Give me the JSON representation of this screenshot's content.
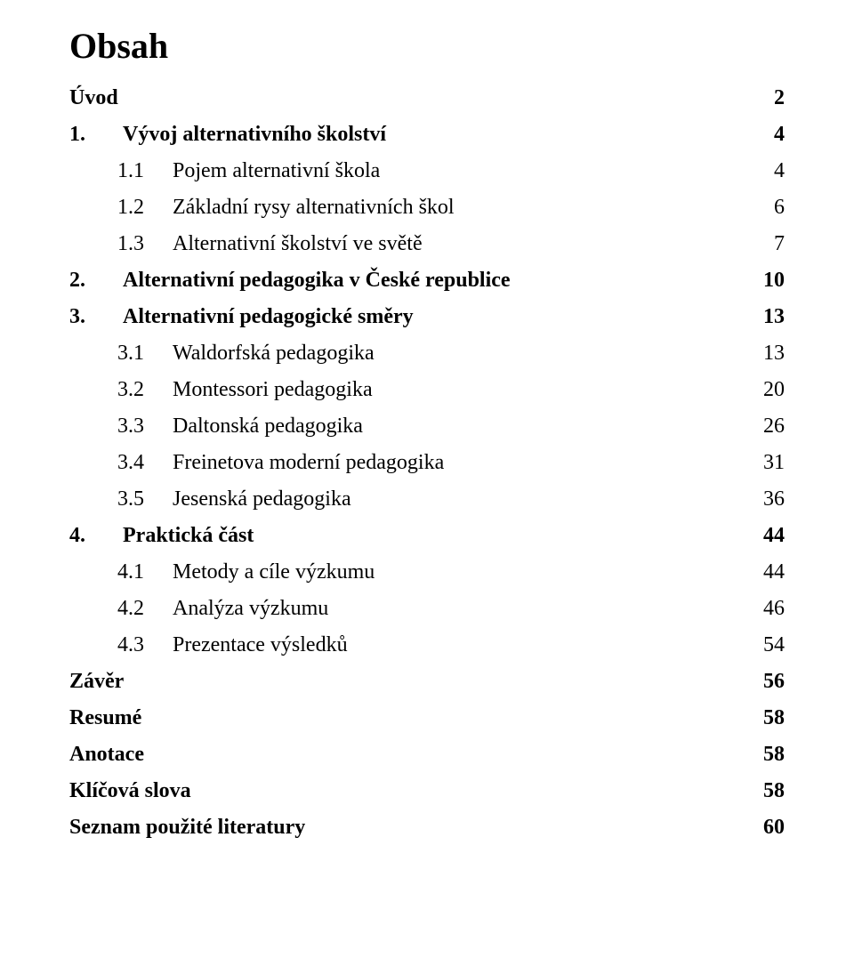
{
  "title": "Obsah",
  "colors": {
    "text": "#000000",
    "background": "#ffffff"
  },
  "typography": {
    "font_family": "Times New Roman",
    "title_fontsize_pt": 30,
    "body_fontsize_pt": 18
  },
  "toc": {
    "items": [
      {
        "level": "plain",
        "num": "",
        "text": "Úvod",
        "page": "2"
      },
      {
        "level": "level1",
        "num": "1.",
        "text": "Vývoj alternativního školství",
        "page": "4"
      },
      {
        "level": "level2",
        "num": "1.1",
        "text": "Pojem alternativní škola",
        "page": "4"
      },
      {
        "level": "level2",
        "num": "1.2",
        "text": "Základní rysy alternativních škol",
        "page": "6"
      },
      {
        "level": "level2",
        "num": "1.3",
        "text": "Alternativní školství ve světě",
        "page": "7"
      },
      {
        "level": "level1",
        "num": "2.",
        "text": "Alternativní pedagogika v České republice",
        "page": "10"
      },
      {
        "level": "level1",
        "num": "3.",
        "text": "Alternativní pedagogické směry",
        "page": "13"
      },
      {
        "level": "level2",
        "num": "3.1",
        "text": "Waldorfská pedagogika",
        "page": "13"
      },
      {
        "level": "level2",
        "num": "3.2",
        "text": "Montessori pedagogika",
        "page": "20"
      },
      {
        "level": "level2",
        "num": "3.3",
        "text": "Daltonská pedagogika",
        "page": "26"
      },
      {
        "level": "level2",
        "num": "3.4",
        "text": "Freinetova moderní pedagogika",
        "page": "31"
      },
      {
        "level": "level2",
        "num": "3.5",
        "text": "Jesenská pedagogika",
        "page": "36"
      },
      {
        "level": "level1",
        "num": "4.",
        "text": "Praktická část",
        "page": "44"
      },
      {
        "level": "level2",
        "num": "4.1",
        "text": "Metody a cíle výzkumu",
        "page": "44"
      },
      {
        "level": "level2",
        "num": "4.2",
        "text": "Analýza výzkumu",
        "page": "46"
      },
      {
        "level": "level2",
        "num": "4.3",
        "text": "Prezentace výsledků",
        "page": "54"
      },
      {
        "level": "plain",
        "num": "",
        "text": "Závěr",
        "page": "56"
      },
      {
        "level": "plain",
        "num": "",
        "text": "Resumé",
        "page": "58"
      },
      {
        "level": "plain",
        "num": "",
        "text": "Anotace",
        "page": "58"
      },
      {
        "level": "plain",
        "num": "",
        "text": "Klíčová slova",
        "page": "58"
      },
      {
        "level": "plain",
        "num": "",
        "text": "Seznam použité literatury",
        "page": "60"
      }
    ]
  }
}
